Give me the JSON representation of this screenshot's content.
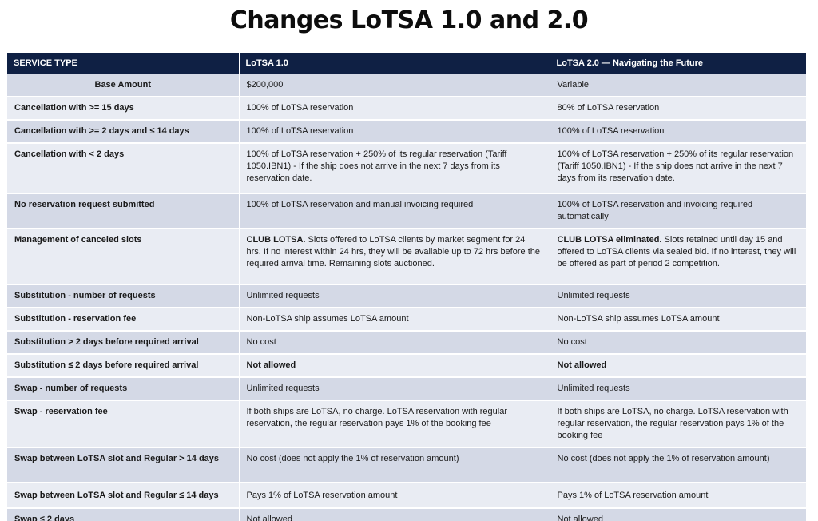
{
  "title": "Changes LoTSA 1.0 and 2.0",
  "headers": [
    "SERVICE TYPE",
    "LoTSA 1.0",
    "LoTSA 2.0 — Navigating the Future"
  ],
  "rows": [
    {
      "service": "Base Amount",
      "v1": {
        "text": "$200,000"
      },
      "v2": {
        "text": "Variable"
      }
    },
    {
      "service": "Cancellation with >= 15 days",
      "v1": {
        "text": "100% of LoTSA reservation"
      },
      "v2": {
        "text": "80% of LoTSA reservation"
      }
    },
    {
      "service": "Cancellation with >= 2 days and ≤ 14 days",
      "v1": {
        "text": "100% of LoTSA reservation"
      },
      "v2": {
        "text": "100% of LoTSA reservation"
      }
    },
    {
      "service": "Cancellation with < 2 days",
      "v1": {
        "text": "100% of LoTSA reservation + 250% of its regular reservation (Tariff 1050.IBN1) - If the ship does not arrive in the next 7 days from its reservation date."
      },
      "v2": {
        "text": "100% of LoTSA reservation + 250% of its regular reservation (Tariff 1050.IBN1) - If the ship does not arrive in the next 7 days from its reservation date."
      }
    },
    {
      "service": "No reservation request submitted",
      "v1": {
        "text": "100% of LoTSA reservation and manual invoicing required"
      },
      "v2": {
        "text": "100% of LoTSA reservation and invoicing required automatically"
      }
    },
    {
      "service": "Management of canceled slots",
      "v1": {
        "bold": "CLUB LOTSA.",
        "text": " Slots offered to LoTSA clients by market segment for 24 hrs. If no interest within 24 hrs, they will be available up to 72 hrs before the required arrival time. Remaining slots auctioned."
      },
      "v2": {
        "bold": "CLUB LOTSA eliminated.",
        "text": " Slots retained until day 15 and offered to LoTSA clients via sealed bid. If no interest, they will be offered as part of period 2 competition."
      }
    },
    {
      "service": "Substitution - number of requests",
      "v1": {
        "text": "Unlimited requests"
      },
      "v2": {
        "text": "Unlimited requests"
      }
    },
    {
      "service": "Substitution - reservation fee",
      "v1": {
        "text": "Non-LoTSA ship assumes LoTSA amount"
      },
      "v2": {
        "text": "Non-LoTSA ship assumes LoTSA amount"
      }
    },
    {
      "service": "Substitution > 2 days before required arrival",
      "v1": {
        "text": "No cost"
      },
      "v2": {
        "text": "No cost"
      }
    },
    {
      "service": "Substitution ≤ 2 days before required arrival",
      "v1": {
        "bold": "Not allowed"
      },
      "v2": {
        "bold": "Not allowed"
      }
    },
    {
      "service": "Swap - number of requests",
      "v1": {
        "text": "Unlimited requests"
      },
      "v2": {
        "text": "Unlimited requests"
      }
    },
    {
      "service": "Swap - reservation fee",
      "v1": {
        "text": "If both ships are LoTSA, no charge. LoTSA reservation with regular reservation, the regular reservation pays 1% of the booking fee"
      },
      "v2": {
        "text": "If both ships are LoTSA, no charge. LoTSA reservation with regular reservation, the regular reservation pays 1% of the booking fee"
      }
    },
    {
      "service": "Swap between LoTSA slot and Regular > 14 days",
      "v1": {
        "text": "No cost (does not apply the 1% of reservation amount)"
      },
      "v2": {
        "text": "No cost (does not apply the 1% of reservation amount)"
      }
    },
    {
      "service": "Swap between LoTSA slot and Regular ≤ 14 days",
      "v1": {
        "text": "Pays 1% of LoTSA reservation amount"
      },
      "v2": {
        "text": "Pays 1% of LoTSA reservation amount"
      }
    },
    {
      "service": "Swap ≤ 2 days",
      "v1": {
        "text": "Not allowed"
      },
      "v2": {
        "text": "Not allowed"
      }
    }
  ]
}
